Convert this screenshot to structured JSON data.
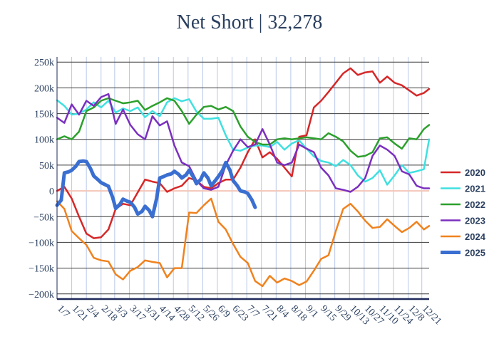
{
  "chart_data": {
    "type": "line",
    "title": "Net Short | 32,278",
    "xlabel": "",
    "ylabel": "",
    "ylim": [
      -210000,
      260000
    ],
    "y_ticks": [
      -200000,
      -150000,
      -100000,
      -50000,
      0,
      50000,
      100000,
      150000,
      200000,
      250000
    ],
    "y_tick_labels": [
      "−200k",
      "−150k",
      "−100k",
      "−50k",
      "0",
      "50k",
      "100k",
      "150k",
      "200k",
      "250k"
    ],
    "x_ticks": [
      "1/7",
      "1/21",
      "2/4",
      "2/18",
      "3/3",
      "3/17",
      "3/31",
      "4/14",
      "4/28",
      "5/12",
      "5/26",
      "6/9",
      "6/23",
      "7/7",
      "7/21",
      "8/4",
      "8/18",
      "9/1",
      "9/15",
      "9/29",
      "10/13",
      "10/27",
      "11/10",
      "11/24",
      "12/8",
      "12/21"
    ],
    "x_tick_days": [
      7,
      21,
      35,
      49,
      62,
      76,
      90,
      104,
      118,
      132,
      146,
      160,
      174,
      188,
      202,
      216,
      230,
      244,
      258,
      272,
      286,
      300,
      314,
      328,
      342,
      355
    ],
    "xlim": [
      7,
      362
    ],
    "grid": true,
    "legend_position": "right",
    "series": [
      {
        "name": "2020",
        "color": "#d62728",
        "width": 2.5,
        "x": [
          7,
          14,
          21,
          28,
          35,
          42,
          49,
          56,
          63,
          70,
          77,
          84,
          91,
          98,
          105,
          112,
          119,
          126,
          133,
          140,
          147,
          154,
          161,
          168,
          175,
          182,
          189,
          196,
          203,
          210,
          217,
          224,
          231,
          238,
          245,
          252,
          259,
          266,
          273,
          280,
          287,
          294,
          301,
          308,
          315,
          322,
          329,
          336,
          343,
          350,
          357,
          362
        ],
        "y": [
          0,
          8000,
          -15000,
          -50000,
          -83000,
          -92000,
          -90000,
          -75000,
          -35000,
          -25000,
          -28000,
          -3000,
          22000,
          18000,
          15000,
          -2000,
          5000,
          10000,
          25000,
          20000,
          8000,
          5000,
          15000,
          22000,
          22000,
          45000,
          75000,
          100000,
          65000,
          75000,
          62000,
          45000,
          28000,
          105000,
          108000,
          162000,
          175000,
          192000,
          210000,
          228000,
          238000,
          225000,
          230000,
          232000,
          210000,
          222000,
          210000,
          205000,
          195000,
          185000,
          190000,
          198000
        ]
      },
      {
        "name": "2021",
        "color": "#40e0e0",
        "width": 2.5,
        "x": [
          7,
          14,
          21,
          28,
          35,
          42,
          49,
          56,
          63,
          70,
          77,
          84,
          91,
          98,
          105,
          112,
          119,
          126,
          133,
          140,
          147,
          154,
          161,
          168,
          175,
          182,
          189,
          196,
          203,
          210,
          217,
          224,
          231,
          238,
          245,
          252,
          259,
          266,
          273,
          280,
          287,
          294,
          301,
          308,
          315,
          322,
          329,
          336,
          343,
          350,
          357,
          362
        ],
        "y": [
          176000,
          165000,
          148000,
          150000,
          158000,
          172000,
          162000,
          175000,
          152000,
          160000,
          155000,
          162000,
          143000,
          155000,
          145000,
          172000,
          180000,
          174000,
          178000,
          154000,
          140000,
          140000,
          142000,
          108000,
          80000,
          78000,
          84000,
          88000,
          88000,
          85000,
          95000,
          80000,
          92000,
          98000,
          82000,
          67000,
          58000,
          55000,
          48000,
          60000,
          50000,
          30000,
          18000,
          25000,
          40000,
          12000,
          30000,
          50000,
          35000,
          38000,
          42000,
          100000
        ]
      },
      {
        "name": "2022",
        "color": "#2ca02c",
        "width": 2.5,
        "x": [
          7,
          14,
          21,
          28,
          35,
          42,
          49,
          56,
          63,
          70,
          77,
          84,
          91,
          98,
          105,
          112,
          119,
          126,
          133,
          140,
          147,
          154,
          161,
          168,
          175,
          182,
          189,
          196,
          203,
          210,
          217,
          224,
          231,
          238,
          245,
          252,
          259,
          266,
          273,
          280,
          287,
          294,
          301,
          308,
          315,
          322,
          329,
          336,
          343,
          350,
          357,
          362
        ],
        "y": [
          100000,
          106000,
          100000,
          115000,
          155000,
          162000,
          175000,
          180000,
          175000,
          170000,
          172000,
          175000,
          157000,
          165000,
          172000,
          180000,
          175000,
          155000,
          130000,
          148000,
          163000,
          165000,
          158000,
          163000,
          155000,
          125000,
          105000,
          95000,
          90000,
          90000,
          100000,
          102000,
          100000,
          102000,
          104000,
          102000,
          100000,
          112000,
          105000,
          96000,
          78000,
          66000,
          68000,
          75000,
          102000,
          104000,
          92000,
          82000,
          102000,
          100000,
          120000,
          128000
        ]
      },
      {
        "name": "2023",
        "color": "#7b2fbf",
        "width": 2.5,
        "x": [
          7,
          14,
          21,
          28,
          35,
          42,
          49,
          56,
          63,
          70,
          77,
          84,
          91,
          98,
          105,
          112,
          119,
          126,
          133,
          140,
          147,
          154,
          161,
          168,
          175,
          182,
          189,
          196,
          203,
          210,
          217,
          224,
          231,
          238,
          245,
          252,
          259,
          266,
          273,
          280,
          287,
          294,
          301,
          308,
          315,
          322,
          329,
          336,
          343,
          350,
          357,
          362
        ],
        "y": [
          142000,
          132000,
          168000,
          148000,
          175000,
          165000,
          182000,
          188000,
          130000,
          158000,
          128000,
          110000,
          100000,
          145000,
          127000,
          135000,
          88000,
          55000,
          48000,
          20000,
          5000,
          2000,
          8000,
          50000,
          78000,
          100000,
          85000,
          90000,
          120000,
          90000,
          55000,
          50000,
          55000,
          90000,
          82000,
          75000,
          45000,
          30000,
          5000,
          2000,
          -2000,
          8000,
          25000,
          68000,
          88000,
          80000,
          68000,
          38000,
          32000,
          10000,
          5000,
          5000
        ]
      },
      {
        "name": "2024",
        "color": "#f0821e",
        "width": 2.5,
        "x": [
          7,
          14,
          21,
          28,
          35,
          42,
          49,
          56,
          63,
          70,
          77,
          84,
          91,
          98,
          105,
          112,
          119,
          126,
          133,
          140,
          147,
          154,
          161,
          168,
          175,
          182,
          189,
          196,
          203,
          210,
          217,
          224,
          231,
          238,
          245,
          252,
          259,
          266,
          273,
          280,
          287,
          294,
          301,
          308,
          315,
          322,
          329,
          336,
          343,
          350,
          357,
          362
        ],
        "y": [
          -20000,
          -35000,
          -78000,
          -92000,
          -105000,
          -130000,
          -135000,
          -137000,
          -162000,
          -172000,
          -155000,
          -148000,
          -135000,
          -138000,
          -140000,
          -168000,
          -150000,
          -150000,
          -42000,
          -43000,
          -28000,
          -15000,
          -60000,
          -75000,
          -103000,
          -128000,
          -140000,
          -175000,
          -185000,
          -165000,
          -178000,
          -170000,
          -175000,
          -183000,
          -176000,
          -155000,
          -132000,
          -125000,
          -78000,
          -35000,
          -25000,
          -40000,
          -58000,
          -72000,
          -70000,
          -55000,
          -68000,
          -80000,
          -72000,
          -60000,
          -75000,
          -68000
        ]
      },
      {
        "name": "2025",
        "color": "#3a6fd1",
        "width": 5,
        "x": [
          7,
          11,
          14,
          18,
          21,
          25,
          28,
          32,
          35,
          39,
          42,
          46,
          49,
          53,
          56,
          60,
          63,
          67,
          70,
          74,
          77,
          81,
          84,
          88,
          91,
          95,
          98,
          102,
          105,
          109,
          112,
          116,
          119,
          123,
          126,
          130,
          133,
          137,
          140,
          144,
          147,
          151,
          154,
          158,
          161,
          165,
          168,
          172,
          175,
          179,
          182,
          186,
          189,
          193,
          196
        ],
        "y": [
          -28000,
          -18000,
          35000,
          37000,
          40000,
          48000,
          57000,
          58000,
          57000,
          43000,
          29000,
          22000,
          16000,
          12000,
          9000,
          -12000,
          -34000,
          -26000,
          -16000,
          -20000,
          -22000,
          -32000,
          -45000,
          -40000,
          -30000,
          -38000,
          -50000,
          -15000,
          25000,
          28000,
          31000,
          33000,
          38000,
          32000,
          25000,
          31000,
          40000,
          27000,
          14000,
          22000,
          35000,
          25000,
          10000,
          20000,
          28000,
          40000,
          55000,
          40000,
          20000,
          10000,
          0,
          -2000,
          -5000,
          -18000,
          -32000
        ]
      }
    ]
  }
}
